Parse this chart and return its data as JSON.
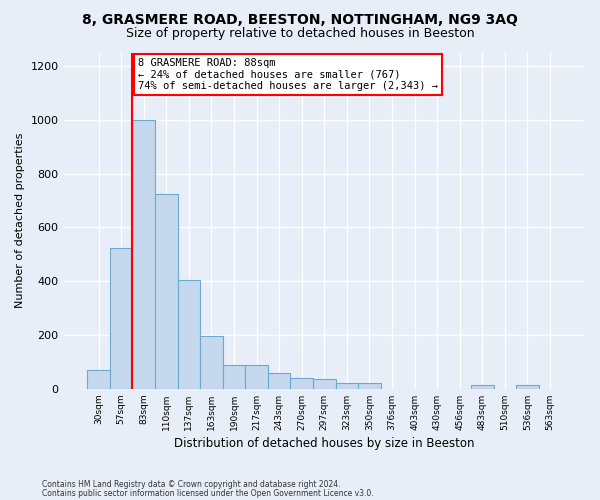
{
  "title1": "8, GRASMERE ROAD, BEESTON, NOTTINGHAM, NG9 3AQ",
  "title2": "Size of property relative to detached houses in Beeston",
  "xlabel": "Distribution of detached houses by size in Beeston",
  "ylabel": "Number of detached properties",
  "categories": [
    "30sqm",
    "57sqm",
    "83sqm",
    "110sqm",
    "137sqm",
    "163sqm",
    "190sqm",
    "217sqm",
    "243sqm",
    "270sqm",
    "297sqm",
    "323sqm",
    "350sqm",
    "376sqm",
    "403sqm",
    "430sqm",
    "456sqm",
    "483sqm",
    "510sqm",
    "536sqm",
    "563sqm"
  ],
  "values": [
    70,
    525,
    1000,
    725,
    405,
    197,
    90,
    90,
    58,
    42,
    35,
    20,
    20,
    0,
    0,
    0,
    0,
    15,
    0,
    13,
    0
  ],
  "bar_color": "#c5d8ee",
  "bar_edge_color": "#6baad0",
  "vline_index": 2,
  "annotation_text": "8 GRASMERE ROAD: 88sqm\n← 24% of detached houses are smaller (767)\n74% of semi-detached houses are larger (2,343) →",
  "annotation_box_color": "white",
  "annotation_box_edge_color": "red",
  "vline_color": "red",
  "ylim": [
    0,
    1250
  ],
  "yticks": [
    0,
    200,
    400,
    600,
    800,
    1000,
    1200
  ],
  "footer1": "Contains HM Land Registry data © Crown copyright and database right 2024.",
  "footer2": "Contains public sector information licensed under the Open Government Licence v3.0.",
  "bg_color": "#e8eef8",
  "plot_bg_color": "#e8eef8",
  "grid_color": "white",
  "title1_fontsize": 10,
  "title2_fontsize": 9
}
